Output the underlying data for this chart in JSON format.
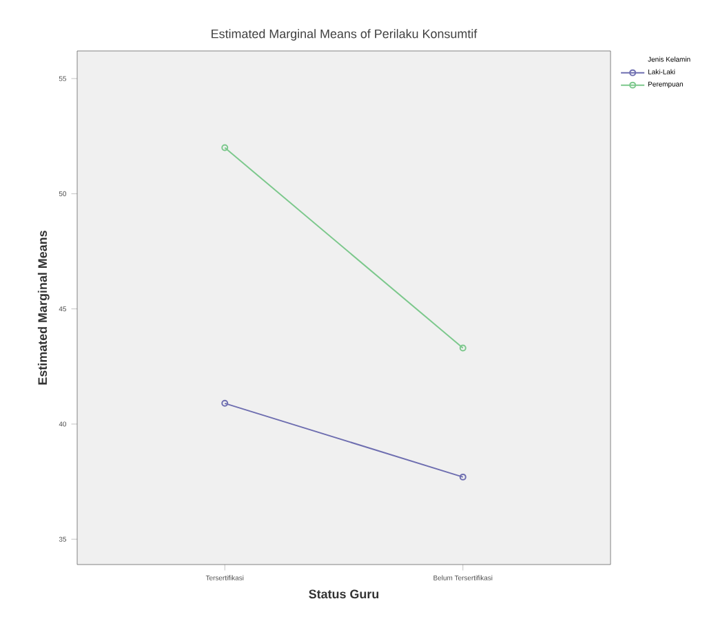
{
  "chart_data": {
    "type": "line",
    "title": "Estimated Marginal Means of Perilaku Konsumtif",
    "xlabel": "Status Guru",
    "ylabel": "Estimated Marginal Means",
    "legend_title": "Jenis Kelamin",
    "categories": [
      "Tersertifikasi",
      "Belum Tersertifikasi"
    ],
    "series": [
      {
        "name": "Laki-Laki",
        "color": "#6e6eb0",
        "values": [
          40.9,
          37.7
        ]
      },
      {
        "name": "Perempuan",
        "color": "#7cc88c",
        "values": [
          52.0,
          43.3
        ]
      }
    ],
    "ylim": [
      33.9,
      56.2
    ],
    "yticks": [
      35,
      40,
      45,
      50,
      55
    ],
    "grid": false,
    "legend": "top right",
    "marker": "circle",
    "line_style": "solid"
  }
}
